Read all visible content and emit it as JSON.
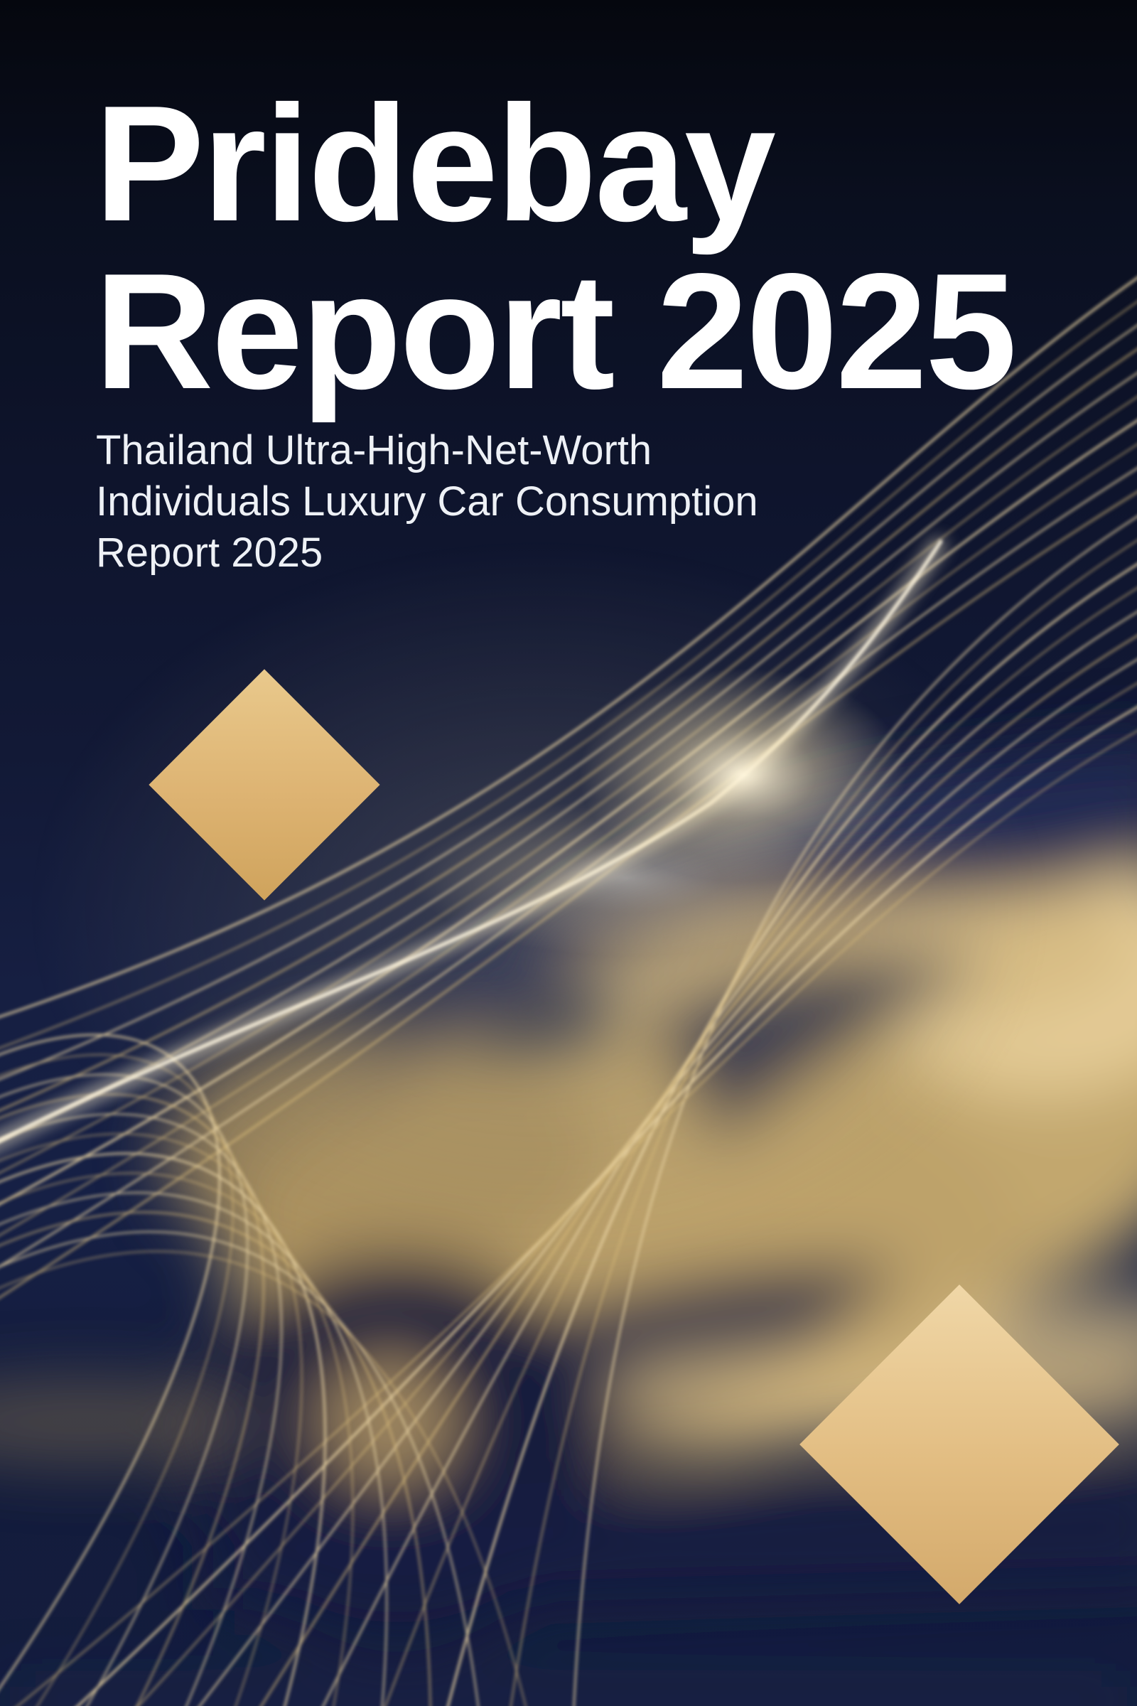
{
  "page": {
    "title_line1": "Pridebay",
    "title_line2": "Report 2025",
    "subtitle_line1": "Thailand Ultra-High-Net-Worth",
    "subtitle_line2": "Individuals Luxury Car Consumption",
    "subtitle_line3": "Report 2025"
  },
  "theme": {
    "background_navy_top": "#05070e",
    "background_navy_mid": "#121936",
    "background_navy_bottom": "#141d3e",
    "deep_navy_shadow": "#1c2546",
    "gold_line": "#e8d3a2",
    "gold_bright": "#fff4d6",
    "diamond_gold_light": "#ecca8d",
    "diamond_gold_dark": "#cfa35c",
    "car_body_gold": "#c9ad72",
    "title_white": "#ffffff",
    "subtitle_white": "#eef1f6"
  },
  "decor": {
    "left_diamond": "gold-diamond",
    "right_diamond": "gold-diamond",
    "wave_lines": "golden-wave-lines",
    "car": "blurred-luxury-car",
    "glow": "light-glow"
  }
}
